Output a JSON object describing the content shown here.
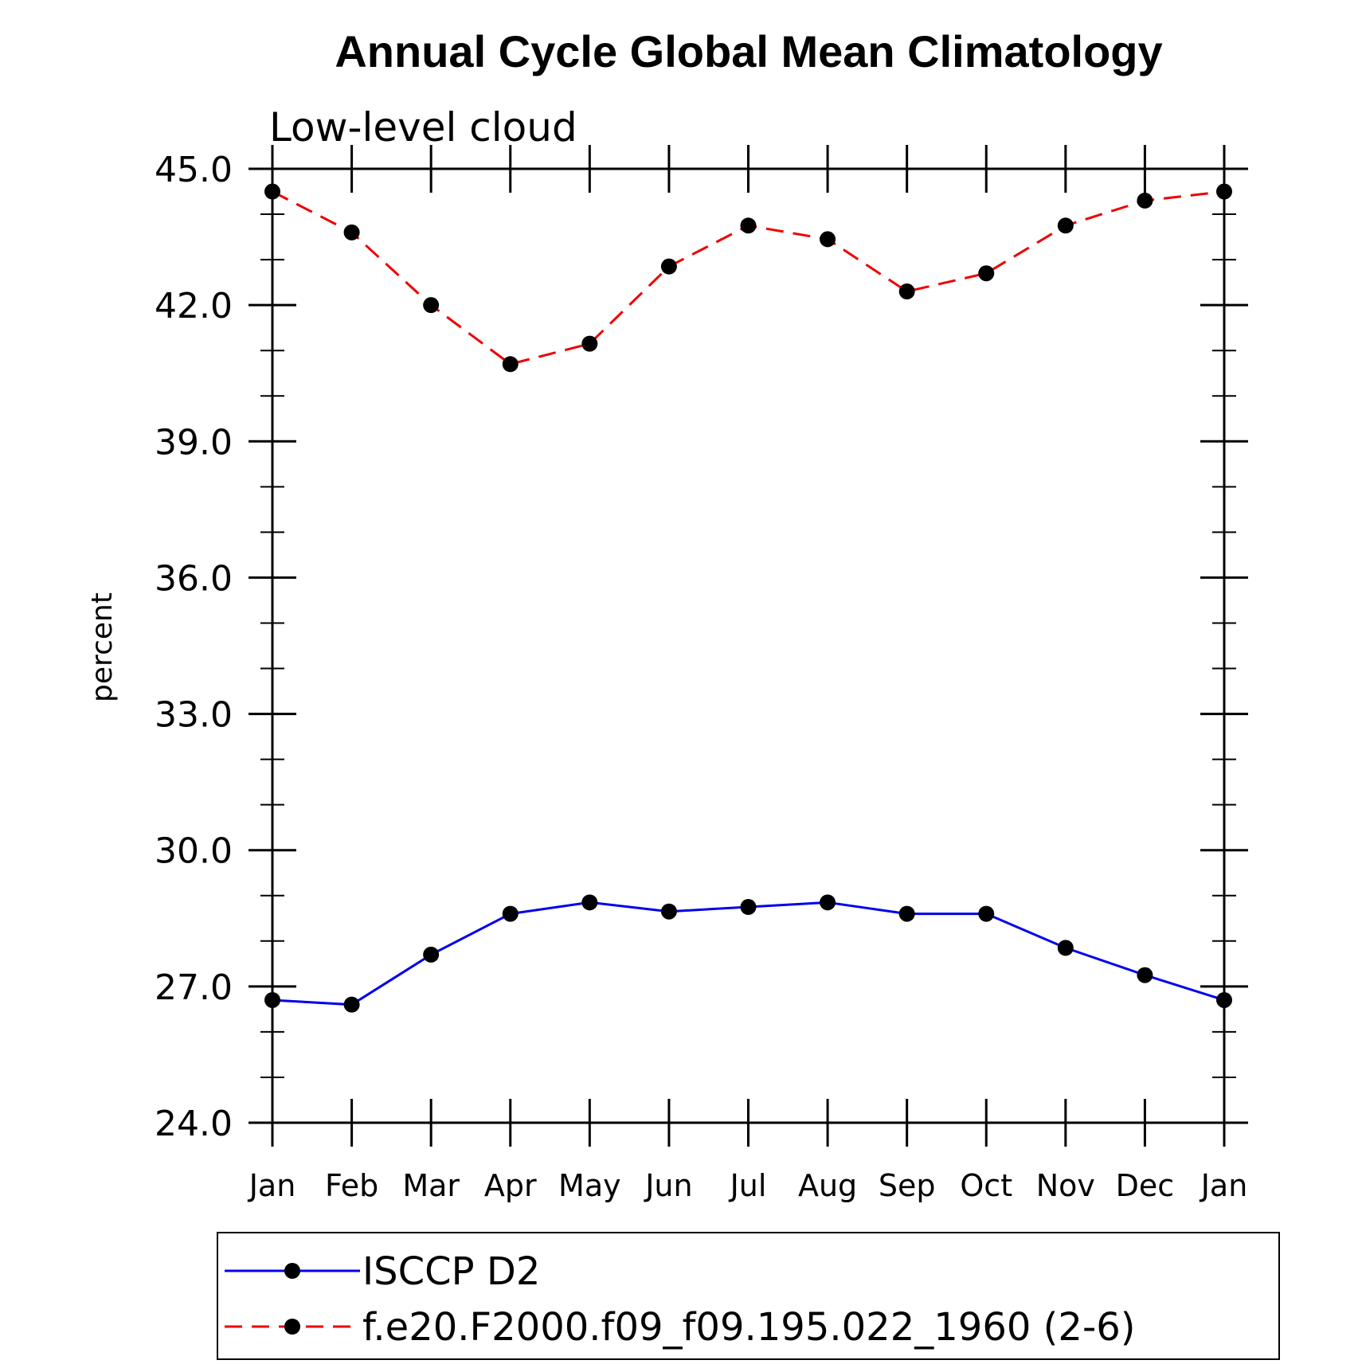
{
  "chart_data": {
    "type": "line",
    "title": "Annual Cycle Global Mean Climatology",
    "subtitle": "Low-level cloud",
    "xlabel": "",
    "ylabel": "percent",
    "ylim": [
      24.0,
      45.0
    ],
    "y_ticks": [
      "24.0",
      "27.0",
      "30.0",
      "33.0",
      "36.0",
      "39.0",
      "42.0",
      "45.0"
    ],
    "categories": [
      "Jan",
      "Feb",
      "Mar",
      "Apr",
      "May",
      "Jun",
      "Jul",
      "Aug",
      "Sep",
      "Oct",
      "Nov",
      "Dec",
      "Jan"
    ],
    "series": [
      {
        "name": "ISCCP D2",
        "color": "#0000ee",
        "dash": "solid",
        "marker": "dot",
        "values": [
          26.7,
          26.6,
          27.7,
          28.6,
          28.85,
          28.65,
          28.75,
          28.85,
          28.6,
          28.6,
          27.85,
          27.25,
          26.7
        ]
      },
      {
        "name": "f.e20.F2000.f09_f09.195.022_1960 (2-6)",
        "color": "#ee0000",
        "dash": "dashed",
        "marker": "dot",
        "values": [
          44.5,
          43.6,
          42.0,
          40.7,
          41.15,
          42.85,
          43.75,
          43.45,
          42.3,
          42.7,
          43.75,
          44.3,
          44.5
        ]
      }
    ],
    "grid": false,
    "legend_position": "bottom"
  }
}
